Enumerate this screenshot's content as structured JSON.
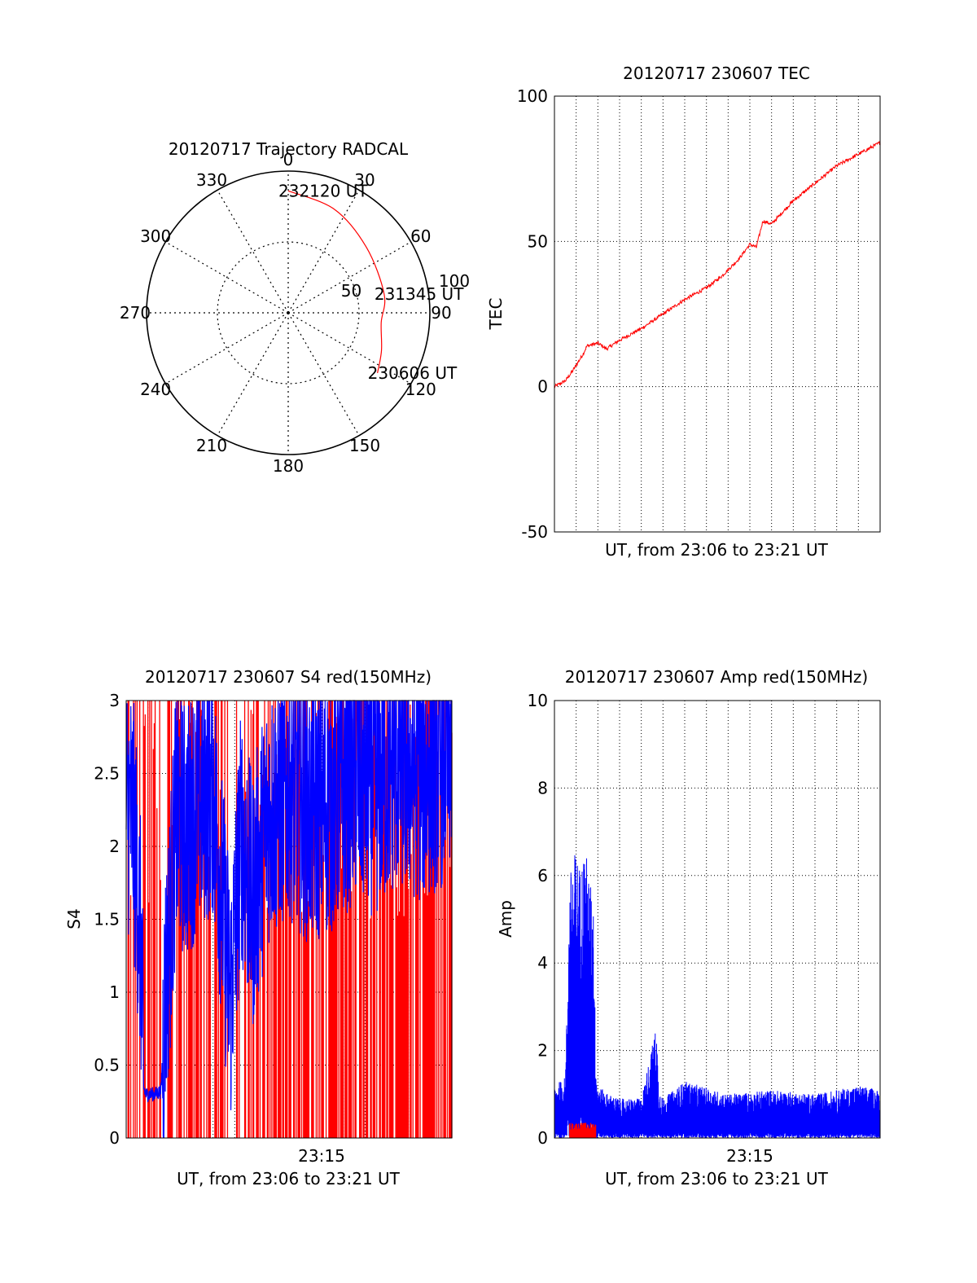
{
  "colors": {
    "red": "#ff0000",
    "blue": "#0000ff",
    "axis": "#000000"
  },
  "chart_data": [
    {
      "id": "trajectory",
      "type": "polar",
      "title": "20120717 Trajectory RADCAL",
      "angle_labels": [
        "0",
        "30",
        "60",
        "90",
        "120",
        "150",
        "180",
        "210",
        "240",
        "270",
        "300",
        "330"
      ],
      "radius_labels": [
        "50",
        "100"
      ],
      "radius_max": 100,
      "grid": true,
      "track": [
        {
          "az": 0,
          "r": 86
        },
        {
          "az": 24,
          "r": 80
        },
        {
          "az": 50,
          "r": 72
        },
        {
          "az": 79,
          "r": 69
        },
        {
          "az": 96,
          "r": 66
        },
        {
          "az": 112,
          "r": 71
        },
        {
          "az": 124,
          "r": 76
        }
      ],
      "annotations": [
        {
          "text": "232120 UT",
          "az": 0,
          "r": 86
        },
        {
          "text": "231345 UT",
          "az": 79,
          "r": 69
        },
        {
          "text": "230606 UT",
          "az": 124,
          "r": 76
        }
      ]
    },
    {
      "id": "tec",
      "type": "line",
      "title": "20120717 230607 TEC",
      "xlabel": "UT, from 23:06 to 23:21 UT",
      "ylabel": "TEC",
      "xlim": [
        0,
        15
      ],
      "ylim": [
        -50,
        100
      ],
      "yticks": [
        "100",
        "50",
        "0",
        "-50"
      ],
      "ytick_values": [
        100,
        50,
        0,
        -50
      ],
      "grid": true,
      "series": [
        {
          "color": "red",
          "x": [
            0,
            0.5,
            0.8,
            1.3,
            1.5,
            2.0,
            2.4,
            3.0,
            4.0,
            5.0,
            6.0,
            7.0,
            7.7,
            8.5,
            9.0,
            9.3,
            9.6,
            10.0,
            11.0,
            12.0,
            13.0,
            14.0,
            15.0
          ],
          "y": [
            0,
            2,
            5,
            11,
            14,
            15,
            13,
            16,
            20,
            25,
            30,
            34,
            38,
            44,
            49,
            48,
            57,
            56,
            64,
            70,
            76,
            80,
            84
          ]
        }
      ]
    },
    {
      "id": "s4",
      "type": "line",
      "title": "20120717 230607 S4 red(150MHz)",
      "xlabel": "UT, from 23:06 to 23:21 UT",
      "ylabel": "S4",
      "xlim": [
        0,
        15
      ],
      "ylim": [
        0,
        3
      ],
      "xticks": [
        "23:15"
      ],
      "xtick_values": [
        9
      ],
      "yticks": [
        "3",
        "2.5",
        "2",
        "1.5",
        "1",
        "0.5",
        "0"
      ],
      "ytick_values": [
        3,
        2.5,
        2,
        1.5,
        1,
        0.5,
        0
      ],
      "grid": true,
      "series": [
        {
          "color": "blue",
          "x": [
            0,
            0.3,
            0.5,
            0.7,
            0.8,
            0.9,
            1.0,
            1.3,
            1.6,
            1.8,
            2.0,
            2.3,
            2.8,
            3.3,
            4.0,
            4.8,
            5.3,
            5.8,
            6.5,
            7.5,
            8.5,
            9.5,
            10.5,
            11.5,
            12.5,
            13.5,
            14.5,
            15.0
          ],
          "y": [
            2.3,
            2.2,
            1.8,
            1.2,
            0.35,
            0.3,
            0.3,
            0.3,
            0.32,
            1.0,
            1.4,
            2.2,
            2.1,
            2.3,
            2.4,
            0.95,
            2.1,
            1.6,
            2.2,
            2.4,
            2.2,
            2.3,
            2.5,
            2.4,
            2.6,
            2.5,
            2.6,
            2.7
          ]
        }
      ]
    },
    {
      "id": "amp",
      "type": "line",
      "title": "20120717 230607 Amp red(150MHz)",
      "xlabel": "UT, from 23:06 to 23:21 UT",
      "ylabel": "Amp",
      "xlim": [
        0,
        15
      ],
      "ylim": [
        0,
        10
      ],
      "xticks": [
        "23:15"
      ],
      "xtick_values": [
        9
      ],
      "yticks": [
        "10",
        "8",
        "6",
        "4",
        "2",
        "0"
      ],
      "ytick_values": [
        10,
        8,
        6,
        4,
        2,
        0
      ],
      "grid": true,
      "series": [
        {
          "color": "blue",
          "x": [
            0,
            0.5,
            0.7,
            0.8,
            1.0,
            1.2,
            1.4,
            1.6,
            1.8,
            1.9,
            2.0,
            2.5,
            3.0,
            4.0,
            4.7,
            4.8,
            5.0,
            6.0,
            8.0,
            10.0,
            12.0,
            14.0,
            15.0
          ],
          "y": [
            1.2,
            1.4,
            5.8,
            6.4,
            6.6,
            6.2,
            6.8,
            6.0,
            5.5,
            1.8,
            1.2,
            1.0,
            0.9,
            0.9,
            2.6,
            1.2,
            0.9,
            1.3,
            1.0,
            1.1,
            1.0,
            1.2,
            1.1
          ]
        },
        {
          "color": "red",
          "x": [
            0.7,
            1.9
          ],
          "y": [
            0.25,
            0.25
          ]
        }
      ]
    }
  ]
}
